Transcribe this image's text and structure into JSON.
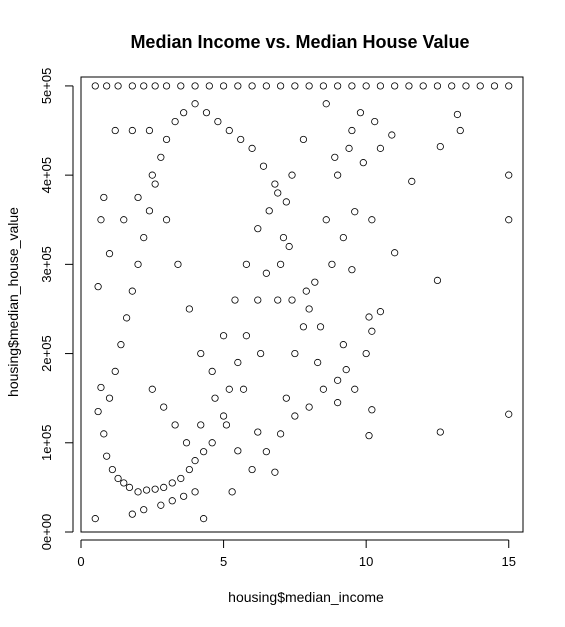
{
  "chart_data": {
    "type": "scatter",
    "title": "Median Income vs. Median House Value",
    "xlabel": "housing$median_income",
    "ylabel": "housing$median_house_value",
    "xlim": [
      0,
      15.5
    ],
    "ylim": [
      0,
      510000
    ],
    "x_ticks": [
      0,
      5,
      10,
      15
    ],
    "x_tick_labels": [
      "0",
      "5",
      "10",
      "15"
    ],
    "y_ticks": [
      0,
      100000,
      200000,
      300000,
      400000,
      500000
    ],
    "y_tick_labels": [
      "0e+00",
      "1e+05",
      "2e+05",
      "3e+05",
      "4e+05",
      "5e+05"
    ],
    "grid": false,
    "legend": "none",
    "marker": "open-circle",
    "series": [
      {
        "points": [
          [
            0.5,
            500000
          ],
          [
            0.9,
            500000
          ],
          [
            1.3,
            500000
          ],
          [
            1.8,
            500000
          ],
          [
            2.2,
            500000
          ],
          [
            2.6,
            500000
          ],
          [
            3.0,
            500000
          ],
          [
            3.5,
            500000
          ],
          [
            4.0,
            500000
          ],
          [
            4.5,
            500000
          ],
          [
            5.0,
            500000
          ],
          [
            5.5,
            500000
          ],
          [
            6.0,
            500000
          ],
          [
            6.5,
            500000
          ],
          [
            7.0,
            500000
          ],
          [
            7.5,
            500000
          ],
          [
            8.0,
            500000
          ],
          [
            8.5,
            500000
          ],
          [
            9.0,
            500000
          ],
          [
            9.5,
            500000
          ],
          [
            10.0,
            500000
          ],
          [
            10.5,
            500000
          ],
          [
            11.0,
            500000
          ],
          [
            11.5,
            500000
          ],
          [
            12.0,
            500000
          ],
          [
            12.5,
            500000
          ],
          [
            13.0,
            500000
          ],
          [
            13.5,
            500000
          ],
          [
            14.0,
            500000
          ],
          [
            14.5,
            500000
          ],
          [
            15.0,
            500000
          ],
          [
            15.0,
            400000
          ],
          [
            15.0,
            350000
          ],
          [
            15.0,
            132000
          ],
          [
            12.6,
            112000
          ],
          [
            12.5,
            282000
          ],
          [
            12.6,
            432000
          ],
          [
            13.2,
            468000
          ],
          [
            13.3,
            450000
          ],
          [
            11.6,
            393000
          ],
          [
            10.1,
            108000
          ],
          [
            10.2,
            137000
          ],
          [
            10.1,
            241000
          ],
          [
            10.2,
            225000
          ],
          [
            10.0,
            200000
          ],
          [
            9.3,
            182000
          ],
          [
            9.5,
            294000
          ],
          [
            10.5,
            247000
          ],
          [
            11.0,
            313000
          ],
          [
            10.2,
            350000
          ],
          [
            10.5,
            430000
          ],
          [
            10.3,
            460000
          ],
          [
            10.9,
            445000
          ],
          [
            9.9,
            414000
          ],
          [
            9.6,
            359000
          ],
          [
            6.8,
            67000
          ],
          [
            5.5,
            91000
          ],
          [
            6.2,
            112000
          ],
          [
            7.5,
            200000
          ],
          [
            7.2,
            150000
          ],
          [
            8.0,
            250000
          ],
          [
            8.3,
            190000
          ],
          [
            9.0,
            170000
          ],
          [
            8.8,
            300000
          ],
          [
            9.2,
            330000
          ],
          [
            8.9,
            420000
          ],
          [
            9.5,
            450000
          ],
          [
            9.8,
            470000
          ],
          [
            8.6,
            480000
          ],
          [
            7.8,
            440000
          ],
          [
            7.4,
            400000
          ],
          [
            6.9,
            380000
          ],
          [
            7.1,
            330000
          ],
          [
            6.5,
            290000
          ],
          [
            6.2,
            260000
          ],
          [
            5.8,
            220000
          ],
          [
            5.5,
            190000
          ],
          [
            5.2,
            160000
          ],
          [
            5.0,
            130000
          ],
          [
            4.6,
            100000
          ],
          [
            4.3,
            90000
          ],
          [
            4.0,
            80000
          ],
          [
            3.8,
            70000
          ],
          [
            3.5,
            60000
          ],
          [
            3.2,
            55000
          ],
          [
            2.9,
            50000
          ],
          [
            2.6,
            48000
          ],
          [
            2.3,
            47000
          ],
          [
            2.0,
            45000
          ],
          [
            1.7,
            50000
          ],
          [
            1.5,
            55000
          ],
          [
            1.3,
            60000
          ],
          [
            1.1,
            70000
          ],
          [
            0.9,
            85000
          ],
          [
            0.8,
            110000
          ],
          [
            1.0,
            150000
          ],
          [
            1.2,
            180000
          ],
          [
            1.4,
            210000
          ],
          [
            1.6,
            240000
          ],
          [
            1.8,
            270000
          ],
          [
            2.0,
            300000
          ],
          [
            2.2,
            330000
          ],
          [
            2.4,
            360000
          ],
          [
            2.6,
            390000
          ],
          [
            2.8,
            420000
          ],
          [
            3.0,
            440000
          ],
          [
            3.3,
            460000
          ],
          [
            3.6,
            470000
          ],
          [
            4.0,
            480000
          ],
          [
            4.4,
            470000
          ],
          [
            4.8,
            460000
          ],
          [
            5.2,
            450000
          ],
          [
            5.6,
            440000
          ],
          [
            6.0,
            430000
          ],
          [
            6.4,
            410000
          ],
          [
            6.8,
            390000
          ],
          [
            7.2,
            370000
          ],
          [
            0.5,
            15000
          ],
          [
            0.6,
            135000
          ],
          [
            0.7,
            162000
          ],
          [
            0.6,
            275000
          ],
          [
            0.7,
            350000
          ],
          [
            0.8,
            375000
          ],
          [
            1.0,
            312000
          ],
          [
            1.2,
            450000
          ],
          [
            1.8,
            450000
          ],
          [
            2.4,
            450000
          ],
          [
            1.5,
            350000
          ],
          [
            2.0,
            375000
          ],
          [
            2.5,
            400000
          ],
          [
            3.0,
            350000
          ],
          [
            3.4,
            300000
          ],
          [
            3.8,
            250000
          ],
          [
            4.2,
            200000
          ],
          [
            4.6,
            180000
          ],
          [
            5.0,
            220000
          ],
          [
            5.4,
            260000
          ],
          [
            5.8,
            300000
          ],
          [
            6.2,
            340000
          ],
          [
            6.6,
            360000
          ],
          [
            7.0,
            300000
          ],
          [
            7.4,
            260000
          ],
          [
            7.8,
            230000
          ],
          [
            8.2,
            280000
          ],
          [
            8.6,
            350000
          ],
          [
            9.0,
            400000
          ],
          [
            9.4,
            430000
          ],
          [
            1.8,
            20000
          ],
          [
            2.2,
            25000
          ],
          [
            2.8,
            30000
          ],
          [
            3.2,
            35000
          ],
          [
            3.6,
            40000
          ],
          [
            4.0,
            45000
          ],
          [
            4.3,
            15000
          ],
          [
            5.3,
            45000
          ],
          [
            6.0,
            70000
          ],
          [
            6.5,
            90000
          ],
          [
            7.0,
            110000
          ],
          [
            7.5,
            130000
          ],
          [
            8.0,
            140000
          ],
          [
            8.5,
            160000
          ],
          [
            9.0,
            145000
          ],
          [
            9.6,
            160000
          ],
          [
            9.2,
            210000
          ],
          [
            8.4,
            230000
          ],
          [
            7.9,
            270000
          ],
          [
            7.3,
            320000
          ],
          [
            6.9,
            260000
          ],
          [
            6.3,
            200000
          ],
          [
            5.7,
            160000
          ],
          [
            5.1,
            120000
          ],
          [
            4.7,
            150000
          ],
          [
            4.2,
            120000
          ],
          [
            3.7,
            100000
          ],
          [
            3.3,
            120000
          ],
          [
            2.9,
            140000
          ],
          [
            2.5,
            160000
          ]
        ]
      }
    ]
  }
}
